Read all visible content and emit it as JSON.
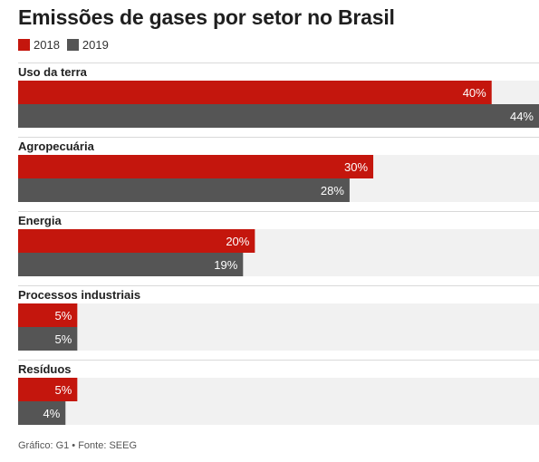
{
  "chart_data": {
    "type": "bar",
    "orientation": "horizontal",
    "title": "Emissões de gases por setor no Brasil",
    "categories": [
      "Uso da terra",
      "Agropecuária",
      "Energia",
      "Processos industriais",
      "Resíduos"
    ],
    "series": [
      {
        "name": "2018",
        "color": "#c4160d",
        "values": [
          40,
          30,
          20,
          5,
          5
        ],
        "labels": [
          "40%",
          "30%",
          "20%",
          "5%",
          "5%"
        ]
      },
      {
        "name": "2019",
        "color": "#555555",
        "values": [
          44,
          28,
          19,
          5,
          4
        ],
        "labels": [
          "44%",
          "28%",
          "19%",
          "5%",
          "4%"
        ]
      }
    ],
    "xlim": [
      0,
      44
    ],
    "legend_position": "top-left",
    "grid": false
  },
  "footer": "Gráfico: G1 • Fonte: SEEG",
  "colors": {
    "track": "#f1f1f1",
    "separator": "#d9d9d9",
    "bar_label": "#ffffff"
  }
}
